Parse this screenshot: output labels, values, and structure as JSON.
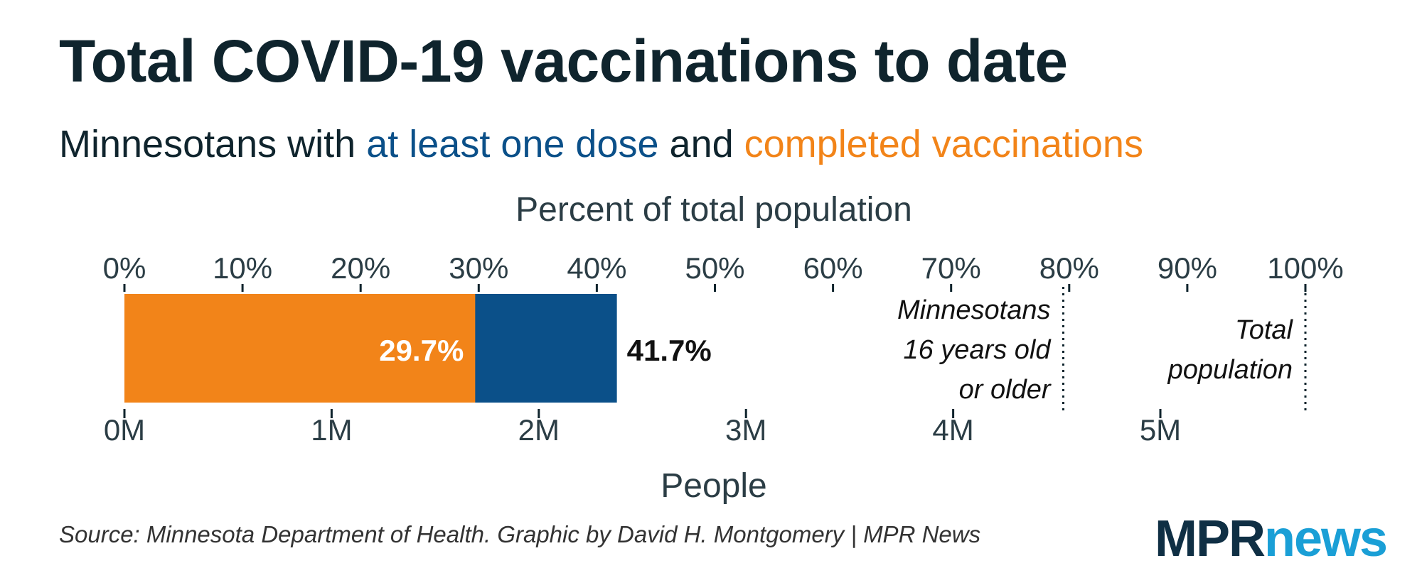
{
  "title": "Total COVID-19 vaccinations to date",
  "subtitle": {
    "prefix": "Minnesotans with ",
    "first": "at least one dose",
    "middle": " and ",
    "second": "completed vaccinations"
  },
  "colors": {
    "first_dose": "#0b5089",
    "completed": "#f28419",
    "text": "#0f242d"
  },
  "source": "Source: Minnesota Department of Health. Graphic by David H. Montgomery | MPR News",
  "logo": {
    "part1": "MPR",
    "part2": "news"
  },
  "chart_data": {
    "type": "bar",
    "orientation": "horizontal",
    "top_axis_label": "Percent of total population",
    "bottom_axis_label": "People",
    "top_ticks": [
      "0%",
      "10%",
      "20%",
      "30%",
      "40%",
      "50%",
      "60%",
      "70%",
      "80%",
      "90%",
      "100%"
    ],
    "bottom_ticks": [
      "0M",
      "1M",
      "2M",
      "3M",
      "4M",
      "5M"
    ],
    "bottom_tick_values": [
      0,
      1,
      2,
      3,
      4,
      5
    ],
    "percent_range": [
      0,
      100
    ],
    "people_range_millions": [
      0,
      5.7
    ],
    "series": [
      {
        "name": "at least one dose",
        "percent": 41.7,
        "label": "41.7%",
        "color": "#0b5089"
      },
      {
        "name": "completed vaccinations",
        "percent": 29.7,
        "label": "29.7%",
        "color": "#f28419"
      }
    ],
    "reference_lines": [
      {
        "percent": 79.5,
        "label_lines": [
          "Minnesotans",
          "16 years old",
          "or older"
        ]
      },
      {
        "percent": 100,
        "label_lines": [
          "Total",
          "population"
        ]
      }
    ]
  }
}
